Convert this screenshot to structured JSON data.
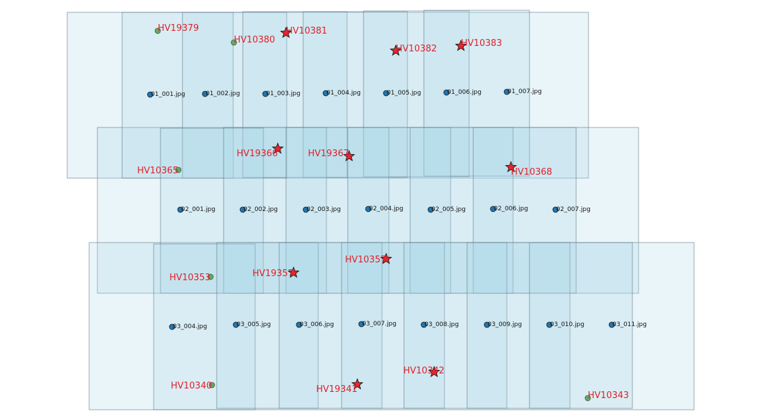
{
  "colors": {
    "footprint_fill": "#add8e6",
    "footprint_stroke": "#4c6a7a",
    "image_point": "#1f77b4",
    "gcp_used": "#e8262c",
    "gcp_unused": "#5cae5c",
    "label": "#e0202a"
  },
  "images": [
    {
      "label": "01_001.jpg"
    },
    {
      "label": "01_002.jpg"
    },
    {
      "label": "01_003.jpg"
    },
    {
      "label": "01_004.jpg"
    },
    {
      "label": "01_005.jpg"
    },
    {
      "label": "01_006.jpg"
    },
    {
      "label": "01_007.jpg"
    },
    {
      "label": "02_001.jpg"
    },
    {
      "label": "02_002.jpg"
    },
    {
      "label": "02_003.jpg"
    },
    {
      "label": "02_004.jpg"
    },
    {
      "label": "02_005.jpg"
    },
    {
      "label": "02_006.jpg"
    },
    {
      "label": "02_007.jpg"
    },
    {
      "label": "03_004.jpg"
    },
    {
      "label": "03_005.jpg"
    },
    {
      "label": "03_006.jpg"
    },
    {
      "label": "03_007.jpg"
    },
    {
      "label": "03_008.jpg"
    },
    {
      "label": "03_009.jpg"
    },
    {
      "label": "03_010.jpg"
    },
    {
      "label": "03_011.jpg"
    }
  ],
  "gcps": [
    {
      "label": "HV19379",
      "marker": "circle"
    },
    {
      "label": "HV10380",
      "marker": "circle"
    },
    {
      "label": "HV10381",
      "marker": "star"
    },
    {
      "label": "HV10382",
      "marker": "star"
    },
    {
      "label": "HV10383",
      "marker": "star"
    },
    {
      "label": "HV10365",
      "marker": "circle"
    },
    {
      "label": "HV19366",
      "marker": "star"
    },
    {
      "label": "HV19367",
      "marker": "star"
    },
    {
      "label": "HV10368",
      "marker": "star"
    },
    {
      "label": "HV10353",
      "marker": "circle"
    },
    {
      "label": "HV19357",
      "marker": "star"
    },
    {
      "label": "HV10357",
      "marker": "star"
    },
    {
      "label": "HV10340",
      "marker": "circle"
    },
    {
      "label": "HV19341",
      "marker": "star"
    },
    {
      "label": "HV10342",
      "marker": "star"
    },
    {
      "label": "HV10343",
      "marker": "circle"
    }
  ]
}
